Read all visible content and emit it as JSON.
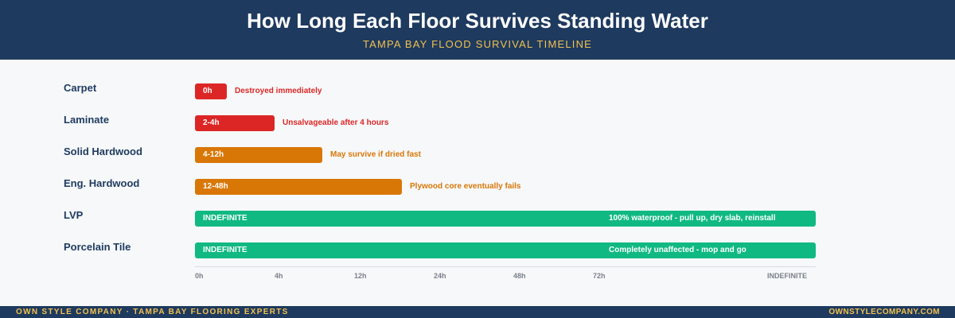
{
  "header": {
    "title": "How Long Each Floor Survives Standing Water",
    "subtitle": "TAMPA BAY FLOOD SURVIVAL TIMELINE"
  },
  "colors": {
    "header_bg": "#1e3a5f",
    "accent": "#f2c14e",
    "destroyed": "#dc2626",
    "risk": "#d97706",
    "safe": "#10b981"
  },
  "chart_data": {
    "type": "bar",
    "orientation": "horizontal",
    "title": "How Long Each Floor Survives Standing Water",
    "subtitle": "TAMPA BAY FLOOD SURVIVAL TIMELINE",
    "categories": [
      "Carpet",
      "Laminate",
      "Solid Hardwood",
      "Eng. Hardwood",
      "LVP",
      "Porcelain Tile"
    ],
    "x_ticks": [
      "0h",
      "4h",
      "12h",
      "24h",
      "48h",
      "72h",
      "INDEFINITE"
    ],
    "bars": [
      {
        "label": "Carpet",
        "value_label": "0h",
        "end_tick": 0.4,
        "note": "Destroyed immediately",
        "status": "destroyed"
      },
      {
        "label": "Laminate",
        "value_label": "2-4h",
        "end_tick": 1,
        "note": "Unsalvageable after 4 hours",
        "status": "destroyed"
      },
      {
        "label": "Solid Hardwood",
        "value_label": "4-12h",
        "end_tick": 1.6,
        "note": "May survive if dried fast",
        "status": "risk"
      },
      {
        "label": "Eng. Hardwood",
        "value_label": "12-48h",
        "end_tick": 2.6,
        "note": "Plywood core eventually fails",
        "status": "risk"
      },
      {
        "label": "LVP",
        "value_label": "INDEFINITE",
        "end_tick": 7.8,
        "note": "100% waterproof - pull up, dry slab, reinstall",
        "status": "safe"
      },
      {
        "label": "Porcelain Tile",
        "value_label": "INDEFINITE",
        "end_tick": 7.8,
        "note": "Completely unaffected - mop and go",
        "status": "safe"
      }
    ]
  },
  "footer": {
    "left": "OWN STYLE COMPANY · TAMPA BAY FLOORING EXPERTS",
    "right": "OWNSTYLECOMPANY.COM"
  }
}
